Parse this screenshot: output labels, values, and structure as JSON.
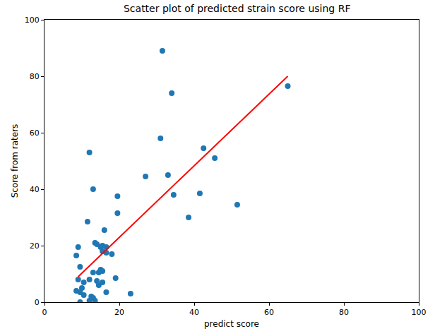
{
  "chart_data": {
    "type": "scatter",
    "title": "Scatter plot of predicted strain score using RF",
    "x_label": "predict score",
    "y_label": "Score from raters",
    "xlim": [
      0,
      100
    ],
    "xticks": [
      0,
      20,
      40,
      60,
      80,
      100
    ],
    "ylim": [
      0,
      100
    ],
    "yticks": [
      0,
      20,
      40,
      60,
      80,
      100
    ],
    "grid": false,
    "series": [
      {
        "type": "scatter",
        "marker": "circle",
        "color": "#1f77b4",
        "x": [
          31.5,
          34,
          65,
          31,
          42.5,
          45.5,
          12,
          27,
          33,
          13,
          41.5,
          34.5,
          19.5,
          19.5,
          38.5,
          51.5,
          11.5,
          16,
          13.5,
          14,
          15,
          15.5,
          16.5,
          15.5,
          16.5,
          18,
          9,
          8.5,
          9.5,
          15,
          15.5,
          13,
          14.5,
          12,
          19,
          9,
          10.5,
          14,
          14.5,
          15.5,
          8.5,
          9.5,
          10,
          16.5,
          23,
          10.5,
          12.5,
          13,
          9.5,
          12,
          13.5
        ],
        "values": [
          89,
          74,
          76.5,
          58,
          54.5,
          51,
          53,
          44.5,
          45,
          40,
          38.5,
          38,
          37.5,
          31.5,
          30,
          34.5,
          28.5,
          25.5,
          21,
          20.5,
          19.5,
          20,
          19.5,
          18,
          17.5,
          17,
          19.5,
          16.5,
          12.5,
          11.5,
          11,
          10.5,
          10.5,
          8,
          8.5,
          8,
          7,
          7.5,
          6,
          7,
          4,
          3.5,
          5,
          3.5,
          3,
          2.5,
          2,
          1.5,
          0,
          0.5,
          0.5
        ]
      },
      {
        "type": "line",
        "line_style": "solid",
        "color": "#ff0000",
        "x": [
          9,
          65
        ],
        "values": [
          9,
          80
        ]
      }
    ]
  }
}
